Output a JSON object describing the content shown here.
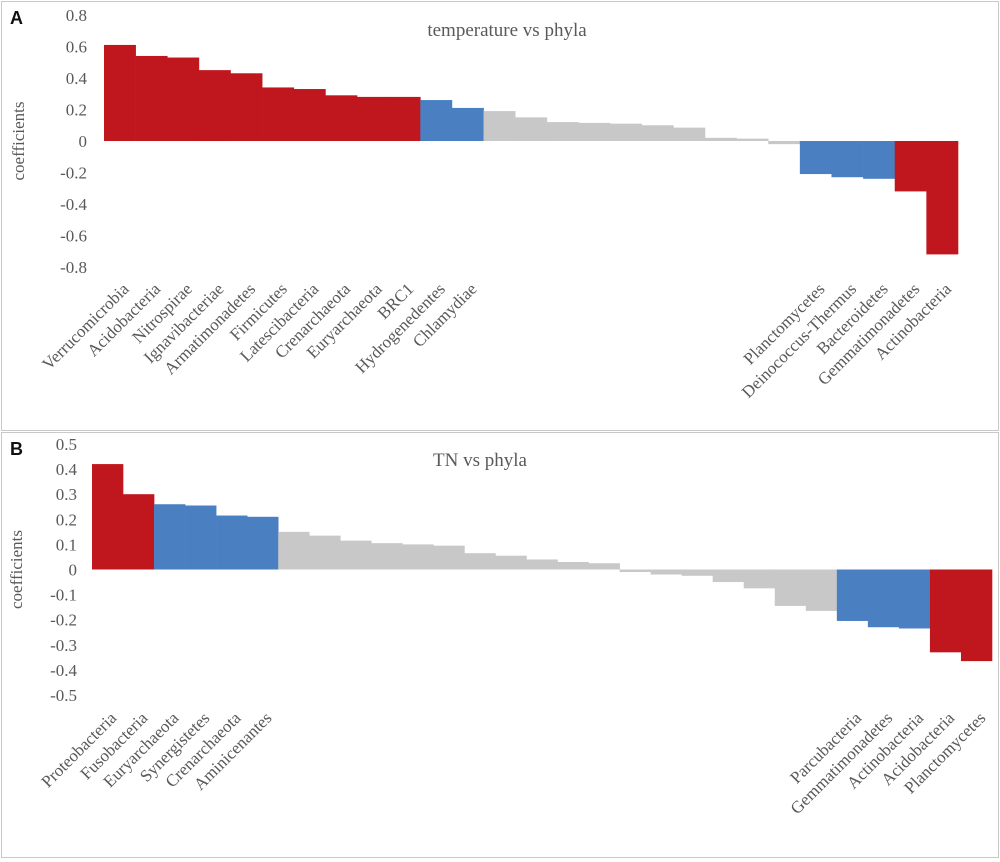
{
  "chart_data": [
    {
      "panel": "A",
      "type": "bar",
      "title": "temperature vs phyla",
      "xlabel": "",
      "ylabel": "coefficients",
      "ylim": [
        -0.8,
        0.8
      ],
      "yticks": [
        "0.8",
        "0.6",
        "0.4",
        "0.2",
        "0",
        "-0.2",
        "-0.4",
        "-0.6",
        "-0.8"
      ],
      "grid": false,
      "legend": "none",
      "colors": {
        "red": "#c0161d",
        "blue": "#4a7fc1",
        "gray": "#c8c8c8"
      },
      "bars": [
        {
          "label": "Verrucomicrobia",
          "value": 0.61,
          "color": "red"
        },
        {
          "label": "Acidobacteria",
          "value": 0.54,
          "color": "red"
        },
        {
          "label": "Nitrospirae",
          "value": 0.53,
          "color": "red"
        },
        {
          "label": "Ignavibacteriae",
          "value": 0.45,
          "color": "red"
        },
        {
          "label": "Armatimonadetes",
          "value": 0.43,
          "color": "red"
        },
        {
          "label": "Firmicutes",
          "value": 0.34,
          "color": "red"
        },
        {
          "label": "Latescibacteria",
          "value": 0.33,
          "color": "red"
        },
        {
          "label": "Crenarchaeota",
          "value": 0.29,
          "color": "red"
        },
        {
          "label": "Euryarchaeota",
          "value": 0.28,
          "color": "red"
        },
        {
          "label": "BRC1",
          "value": 0.28,
          "color": "red"
        },
        {
          "label": "Hydrogenedentes",
          "value": 0.26,
          "color": "blue"
        },
        {
          "label": "Chlamydiae",
          "value": 0.21,
          "color": "blue"
        },
        {
          "label": "",
          "value": 0.19,
          "color": "gray"
        },
        {
          "label": "",
          "value": 0.15,
          "color": "gray"
        },
        {
          "label": "",
          "value": 0.12,
          "color": "gray"
        },
        {
          "label": "",
          "value": 0.115,
          "color": "gray"
        },
        {
          "label": "",
          "value": 0.11,
          "color": "gray"
        },
        {
          "label": "",
          "value": 0.1,
          "color": "gray"
        },
        {
          "label": "",
          "value": 0.085,
          "color": "gray"
        },
        {
          "label": "",
          "value": 0.02,
          "color": "gray"
        },
        {
          "label": "",
          "value": 0.015,
          "color": "gray"
        },
        {
          "label": "",
          "value": -0.02,
          "color": "gray"
        },
        {
          "label": "Planctomycetes",
          "value": -0.21,
          "color": "blue"
        },
        {
          "label": "Deinococcus-Thermus",
          "value": -0.23,
          "color": "blue"
        },
        {
          "label": "Bacteroidetes",
          "value": -0.24,
          "color": "blue"
        },
        {
          "label": "Gemmatimonadetes",
          "value": -0.32,
          "color": "red"
        },
        {
          "label": "Actinobacteria",
          "value": -0.72,
          "color": "red"
        }
      ]
    },
    {
      "panel": "B",
      "type": "bar",
      "title": "TN vs phyla",
      "xlabel": "",
      "ylabel": "coefficients",
      "ylim": [
        -0.5,
        0.5
      ],
      "yticks": [
        "0.5",
        "0.4",
        "0.3",
        "0.2",
        "0.1",
        "0",
        "-0.1",
        "-0.2",
        "-0.3",
        "-0.4",
        "-0.5"
      ],
      "grid": false,
      "legend": "none",
      "colors": {
        "red": "#c0161d",
        "blue": "#4a7fc1",
        "gray": "#c8c8c8"
      },
      "bars": [
        {
          "label": "Proteobacteria",
          "value": 0.42,
          "color": "red"
        },
        {
          "label": "Fusobacteria",
          "value": 0.3,
          "color": "red"
        },
        {
          "label": "Euryarchaeota",
          "value": 0.26,
          "color": "blue"
        },
        {
          "label": "Synergistetes",
          "value": 0.255,
          "color": "blue"
        },
        {
          "label": "Crenarchaeota",
          "value": 0.215,
          "color": "blue"
        },
        {
          "label": "Aminicenantes",
          "value": 0.21,
          "color": "blue"
        },
        {
          "label": "",
          "value": 0.15,
          "color": "gray"
        },
        {
          "label": "",
          "value": 0.135,
          "color": "gray"
        },
        {
          "label": "",
          "value": 0.115,
          "color": "gray"
        },
        {
          "label": "",
          "value": 0.105,
          "color": "gray"
        },
        {
          "label": "",
          "value": 0.1,
          "color": "gray"
        },
        {
          "label": "",
          "value": 0.095,
          "color": "gray"
        },
        {
          "label": "",
          "value": 0.065,
          "color": "gray"
        },
        {
          "label": "",
          "value": 0.055,
          "color": "gray"
        },
        {
          "label": "",
          "value": 0.04,
          "color": "gray"
        },
        {
          "label": "",
          "value": 0.03,
          "color": "gray"
        },
        {
          "label": "",
          "value": 0.025,
          "color": "gray"
        },
        {
          "label": "",
          "value": -0.01,
          "color": "gray"
        },
        {
          "label": "",
          "value": -0.02,
          "color": "gray"
        },
        {
          "label": "",
          "value": -0.025,
          "color": "gray"
        },
        {
          "label": "",
          "value": -0.05,
          "color": "gray"
        },
        {
          "label": "",
          "value": -0.075,
          "color": "gray"
        },
        {
          "label": "",
          "value": -0.145,
          "color": "gray"
        },
        {
          "label": "",
          "value": -0.165,
          "color": "gray"
        },
        {
          "label": "Parcubacteria",
          "value": -0.205,
          "color": "blue"
        },
        {
          "label": "Gemmatimonadetes",
          "value": -0.23,
          "color": "blue"
        },
        {
          "label": "Actinobacteria",
          "value": -0.235,
          "color": "blue"
        },
        {
          "label": "Acidobacteria",
          "value": -0.33,
          "color": "red"
        },
        {
          "label": "Planctomycetes",
          "value": -0.365,
          "color": "red"
        }
      ]
    }
  ]
}
